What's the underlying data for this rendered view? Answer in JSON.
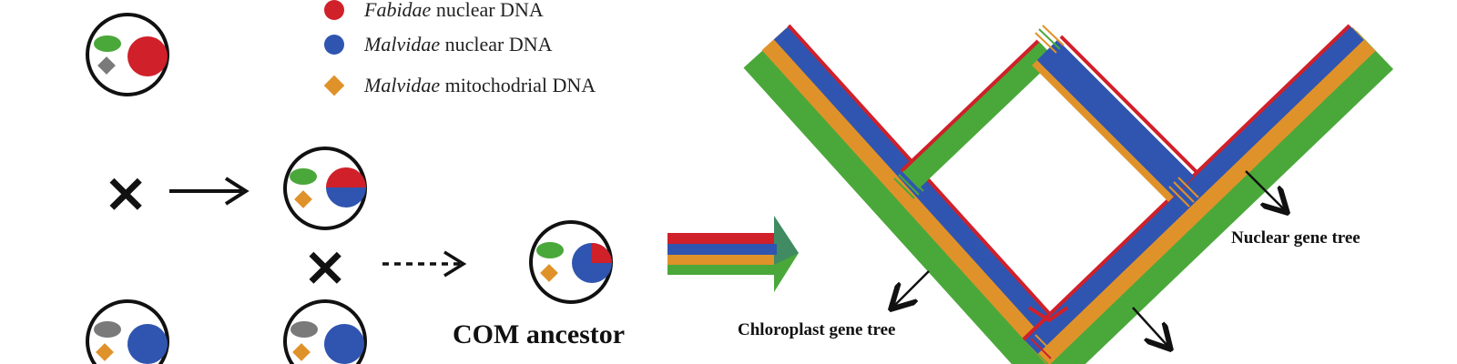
{
  "legend": {
    "items": [
      {
        "italic": "Fabidae",
        "text": " nuclear DNA",
        "shape": "circle",
        "color": "#d0202a"
      },
      {
        "italic": "Malvidae",
        "text": " nuclear DNA",
        "shape": "circle",
        "color": "#2f55b0"
      },
      {
        "italic": "Malvidae",
        "text": " mitochodrial DNA",
        "shape": "diamond",
        "color": "#e0922a"
      }
    ]
  },
  "labels": {
    "com_ancestor": "COM ancestor",
    "chloroplast_tree": "Chloroplast gene tree",
    "nuclear_tree": "Nuclear gene tree"
  },
  "symbols": {
    "cross": "×"
  },
  "colors": {
    "red": "#d0202a",
    "blue": "#2f55b0",
    "orange": "#e0922a",
    "green": "#4aa83a",
    "gray": "#7a7a7a",
    "black": "#111111"
  }
}
